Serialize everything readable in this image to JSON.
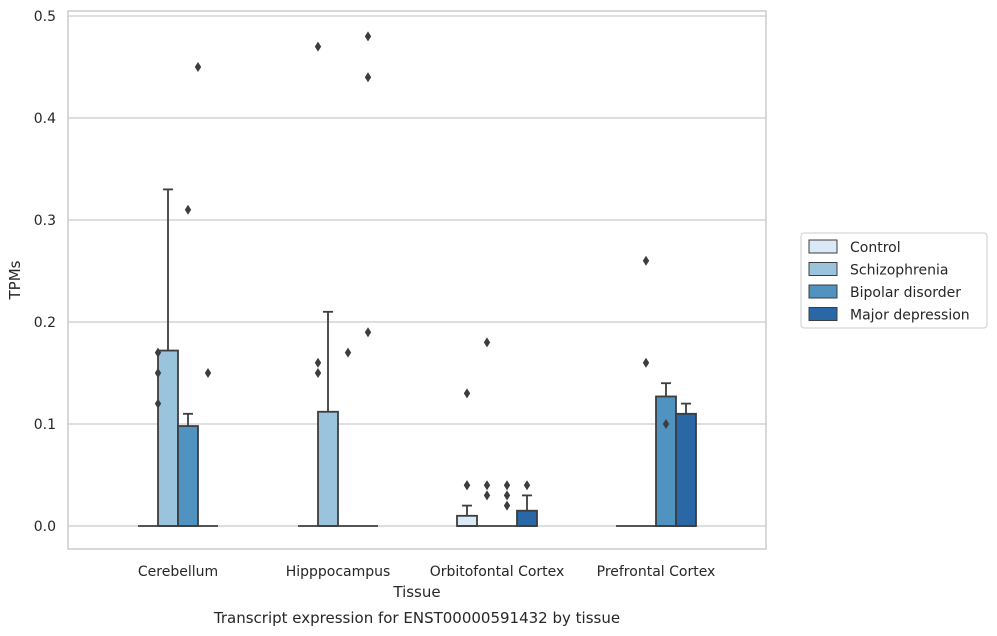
{
  "chart_data": {
    "type": "bar",
    "title": "",
    "xlabel": "Tissue",
    "ylabel": "TPMs",
    "caption": "Transcript expression for ENST00000591432 by tissue",
    "ylim": [
      -0.023,
      0.505
    ],
    "y_ticks": [
      0.0,
      0.1,
      0.2,
      0.3,
      0.4,
      0.5
    ],
    "y_tick_labels": [
      "0.0",
      "0.1",
      "0.2",
      "0.3",
      "0.4",
      "0.5"
    ],
    "grid": "horizontal",
    "legend_placement": "outside-right",
    "categories": [
      "Cerebellum",
      "Hipppocampus",
      "Orbitofontal Cortex",
      "Prefrontal Cortex"
    ],
    "series": [
      {
        "name": "Control",
        "color": "#dbe8f5",
        "boxes": [
          {
            "q1": 0.0,
            "median": 0.0,
            "q3": 0.0,
            "whisker_low": 0.0,
            "whisker_high": 0.0,
            "outliers": []
          },
          {
            "q1": 0.0,
            "median": 0.0,
            "q3": 0.0,
            "whisker_low": 0.0,
            "whisker_high": 0.0,
            "outliers": []
          },
          {
            "q1": 0.0,
            "median": 0.0,
            "q3": 0.01,
            "whisker_low": 0.0,
            "whisker_high": 0.02,
            "outliers": [
              0.04,
              0.04,
              0.13
            ]
          },
          {
            "q1": 0.0,
            "median": 0.0,
            "q3": 0.0,
            "whisker_low": 0.0,
            "whisker_high": 0.0,
            "outliers": []
          }
        ]
      },
      {
        "name": "Schizophrenia",
        "color": "#9ac4dd",
        "boxes": [
          {
            "q1": 0.0,
            "median": 0.0,
            "q3": 0.172,
            "whisker_low": 0.0,
            "whisker_high": 0.33,
            "outliers": []
          },
          {
            "q1": 0.0,
            "median": 0.0,
            "q3": 0.112,
            "whisker_low": 0.0,
            "whisker_high": 0.21,
            "outliers": []
          },
          {
            "q1": 0.0,
            "median": 0.0,
            "q3": 0.0,
            "whisker_low": 0.0,
            "whisker_high": 0.0,
            "outliers": [
              0.03,
              0.04,
              0.18
            ]
          },
          {
            "q1": 0.0,
            "median": 0.0,
            "q3": 0.0,
            "whisker_low": 0.0,
            "whisker_high": 0.0,
            "outliers": [
              0.16,
              0.26
            ]
          }
        ]
      },
      {
        "name": "Bipolar disorder",
        "color": "#5093c1",
        "boxes": [
          {
            "q1": 0.0,
            "median": 0.0,
            "q3": 0.098,
            "whisker_low": 0.0,
            "whisker_high": 0.11,
            "outliers": [
              0.31
            ]
          },
          {
            "q1": 0.0,
            "median": 0.0,
            "q3": 0.0,
            "whisker_low": 0.0,
            "whisker_high": 0.0,
            "outliers": [
              0.17
            ]
          },
          {
            "q1": 0.0,
            "median": 0.0,
            "q3": 0.0,
            "whisker_low": 0.0,
            "whisker_high": 0.0,
            "outliers": [
              0.02,
              0.03,
              0.04
            ]
          },
          {
            "q1": 0.0,
            "median": 0.0,
            "q3": 0.127,
            "whisker_low": 0.0,
            "whisker_high": 0.14,
            "outliers": [
              0.1
            ]
          }
        ]
      },
      {
        "name": "Major depression",
        "color": "#2a67a7",
        "boxes": [
          {
            "q1": 0.0,
            "median": 0.0,
            "q3": 0.0,
            "whisker_low": 0.0,
            "whisker_high": 0.0,
            "outliers": [
              0.15
            ]
          },
          {
            "q1": 0.0,
            "median": 0.0,
            "q3": 0.0,
            "whisker_low": 0.0,
            "whisker_high": 0.0,
            "outliers": [
              0.19,
              0.44,
              0.48
            ]
          },
          {
            "q1": 0.0,
            "median": 0.0,
            "q3": 0.015,
            "whisker_low": 0.0,
            "whisker_high": 0.03,
            "outliers": [
              0.04
            ]
          },
          {
            "q1": 0.0,
            "median": 0.0,
            "q3": 0.11,
            "whisker_low": 0.0,
            "whisker_high": 0.12,
            "outliers": []
          }
        ]
      }
    ],
    "extra_outliers": [
      {
        "category": "Cerebellum",
        "between": "Control|Schizophrenia",
        "values": [
          0.12,
          0.15,
          0.17
        ]
      },
      {
        "category": "Cerebellum",
        "between": "Bipolar disorder|Major depression",
        "values": [
          0.45
        ]
      },
      {
        "category": "Hipppocampus",
        "between": "Control|Schizophrenia",
        "values": [
          0.15,
          0.16,
          0.47
        ]
      }
    ]
  }
}
